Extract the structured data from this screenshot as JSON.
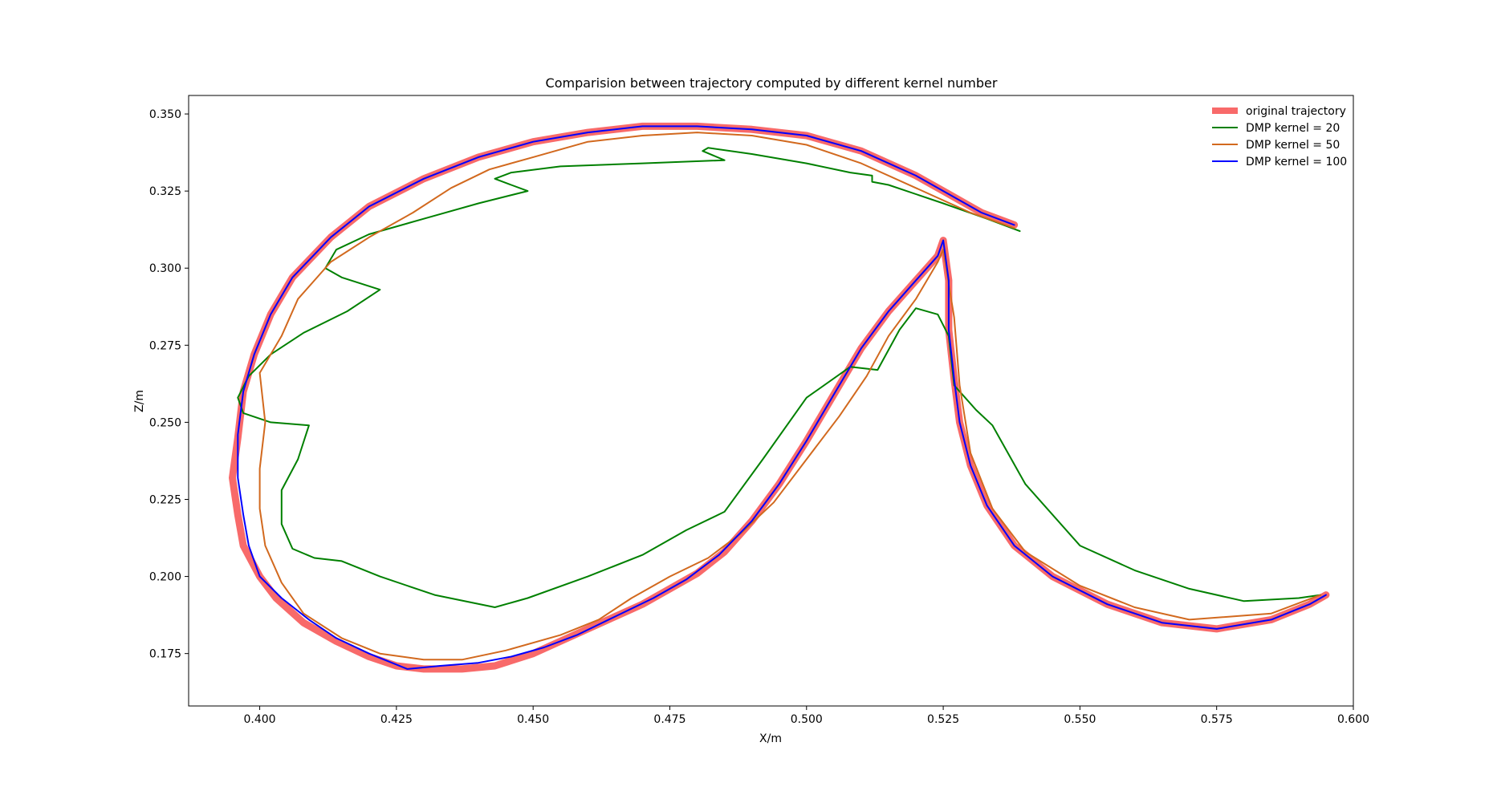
{
  "chart_data": {
    "type": "line",
    "title": "Comparision between trajectory computed by different kernel number",
    "xlabel": "X/m",
    "ylabel": "Z/m",
    "xlim": [
      0.387,
      0.6
    ],
    "ylim": [
      0.158,
      0.356
    ],
    "xticks": [
      0.4,
      0.425,
      0.45,
      0.475,
      0.5,
      0.525,
      0.55,
      0.575,
      0.6
    ],
    "xtick_labels": [
      "0.400",
      "0.425",
      "0.450",
      "0.475",
      "0.500",
      "0.525",
      "0.550",
      "0.575",
      "0.600"
    ],
    "yticks": [
      0.175,
      0.2,
      0.225,
      0.25,
      0.275,
      0.3,
      0.325,
      0.35
    ],
    "ytick_labels": [
      "0.175",
      "0.200",
      "0.225",
      "0.250",
      "0.275",
      "0.300",
      "0.325",
      "0.350"
    ],
    "grid": false,
    "legend_position": "top-right",
    "series": [
      {
        "name": "original trajectory",
        "color": "#f86a6a",
        "points": [
          [
            0.538,
            0.314
          ],
          [
            0.532,
            0.318
          ],
          [
            0.525,
            0.325
          ],
          [
            0.52,
            0.33
          ],
          [
            0.51,
            0.338
          ],
          [
            0.5,
            0.343
          ],
          [
            0.49,
            0.345
          ],
          [
            0.48,
            0.346
          ],
          [
            0.47,
            0.346
          ],
          [
            0.46,
            0.344
          ],
          [
            0.45,
            0.341
          ],
          [
            0.44,
            0.336
          ],
          [
            0.43,
            0.329
          ],
          [
            0.42,
            0.32
          ],
          [
            0.413,
            0.31
          ],
          [
            0.406,
            0.297
          ],
          [
            0.402,
            0.285
          ],
          [
            0.399,
            0.272
          ],
          [
            0.397,
            0.26
          ],
          [
            0.396,
            0.245
          ],
          [
            0.395,
            0.232
          ],
          [
            0.396,
            0.22
          ],
          [
            0.397,
            0.21
          ],
          [
            0.4,
            0.2
          ],
          [
            0.403,
            0.193
          ],
          [
            0.408,
            0.185
          ],
          [
            0.414,
            0.179
          ],
          [
            0.42,
            0.174
          ],
          [
            0.425,
            0.171
          ],
          [
            0.43,
            0.17
          ],
          [
            0.437,
            0.17
          ],
          [
            0.443,
            0.171
          ],
          [
            0.45,
            0.175
          ],
          [
            0.455,
            0.179
          ],
          [
            0.46,
            0.183
          ],
          [
            0.465,
            0.187
          ],
          [
            0.47,
            0.191
          ],
          [
            0.475,
            0.196
          ],
          [
            0.48,
            0.201
          ],
          [
            0.485,
            0.208
          ],
          [
            0.49,
            0.218
          ],
          [
            0.495,
            0.23
          ],
          [
            0.5,
            0.244
          ],
          [
            0.505,
            0.259
          ],
          [
            0.51,
            0.274
          ],
          [
            0.515,
            0.286
          ],
          [
            0.52,
            0.296
          ],
          [
            0.524,
            0.304
          ],
          [
            0.525,
            0.309
          ],
          [
            0.526,
            0.296
          ],
          [
            0.526,
            0.28
          ],
          [
            0.527,
            0.264
          ],
          [
            0.528,
            0.25
          ],
          [
            0.53,
            0.236
          ],
          [
            0.533,
            0.223
          ],
          [
            0.538,
            0.21
          ],
          [
            0.545,
            0.2
          ],
          [
            0.555,
            0.191
          ],
          [
            0.565,
            0.185
          ],
          [
            0.575,
            0.183
          ],
          [
            0.585,
            0.186
          ],
          [
            0.592,
            0.191
          ],
          [
            0.595,
            0.194
          ]
        ]
      },
      {
        "name": "DMP kernel = 20",
        "color": "#008000",
        "points": [
          [
            0.539,
            0.312
          ],
          [
            0.533,
            0.316
          ],
          [
            0.525,
            0.321
          ],
          [
            0.515,
            0.327
          ],
          [
            0.512,
            0.328
          ],
          [
            0.512,
            0.33
          ],
          [
            0.508,
            0.331
          ],
          [
            0.5,
            0.334
          ],
          [
            0.49,
            0.337
          ],
          [
            0.482,
            0.339
          ],
          [
            0.481,
            0.338
          ],
          [
            0.485,
            0.335
          ],
          [
            0.47,
            0.334
          ],
          [
            0.455,
            0.333
          ],
          [
            0.446,
            0.331
          ],
          [
            0.443,
            0.329
          ],
          [
            0.446,
            0.327
          ],
          [
            0.449,
            0.325
          ],
          [
            0.44,
            0.321
          ],
          [
            0.43,
            0.316
          ],
          [
            0.42,
            0.311
          ],
          [
            0.414,
            0.306
          ],
          [
            0.412,
            0.3
          ],
          [
            0.415,
            0.297
          ],
          [
            0.422,
            0.293
          ],
          [
            0.416,
            0.286
          ],
          [
            0.408,
            0.279
          ],
          [
            0.402,
            0.272
          ],
          [
            0.398,
            0.265
          ],
          [
            0.396,
            0.258
          ],
          [
            0.397,
            0.253
          ],
          [
            0.402,
            0.25
          ],
          [
            0.409,
            0.249
          ],
          [
            0.407,
            0.238
          ],
          [
            0.404,
            0.228
          ],
          [
            0.404,
            0.217
          ],
          [
            0.406,
            0.209
          ],
          [
            0.41,
            0.206
          ],
          [
            0.415,
            0.205
          ],
          [
            0.422,
            0.2
          ],
          [
            0.432,
            0.194
          ],
          [
            0.443,
            0.19
          ],
          [
            0.449,
            0.193
          ],
          [
            0.46,
            0.2
          ],
          [
            0.47,
            0.207
          ],
          [
            0.478,
            0.215
          ],
          [
            0.485,
            0.221
          ],
          [
            0.492,
            0.238
          ],
          [
            0.5,
            0.258
          ],
          [
            0.508,
            0.268
          ],
          [
            0.513,
            0.267
          ],
          [
            0.517,
            0.28
          ],
          [
            0.52,
            0.287
          ],
          [
            0.524,
            0.285
          ],
          [
            0.526,
            0.278
          ],
          [
            0.527,
            0.262
          ],
          [
            0.531,
            0.254
          ],
          [
            0.534,
            0.249
          ],
          [
            0.54,
            0.23
          ],
          [
            0.55,
            0.21
          ],
          [
            0.56,
            0.202
          ],
          [
            0.57,
            0.196
          ],
          [
            0.58,
            0.192
          ],
          [
            0.59,
            0.193
          ],
          [
            0.594,
            0.194
          ]
        ]
      },
      {
        "name": "DMP kernel = 50",
        "color": "#d2691e",
        "points": [
          [
            0.538,
            0.313
          ],
          [
            0.53,
            0.318
          ],
          [
            0.52,
            0.326
          ],
          [
            0.51,
            0.334
          ],
          [
            0.5,
            0.34
          ],
          [
            0.49,
            0.343
          ],
          [
            0.48,
            0.344
          ],
          [
            0.47,
            0.343
          ],
          [
            0.46,
            0.341
          ],
          [
            0.45,
            0.336
          ],
          [
            0.442,
            0.332
          ],
          [
            0.435,
            0.326
          ],
          [
            0.428,
            0.318
          ],
          [
            0.42,
            0.31
          ],
          [
            0.413,
            0.302
          ],
          [
            0.407,
            0.29
          ],
          [
            0.404,
            0.278
          ],
          [
            0.4,
            0.266
          ],
          [
            0.401,
            0.25
          ],
          [
            0.4,
            0.235
          ],
          [
            0.4,
            0.222
          ],
          [
            0.401,
            0.21
          ],
          [
            0.404,
            0.198
          ],
          [
            0.408,
            0.188
          ],
          [
            0.415,
            0.18
          ],
          [
            0.422,
            0.175
          ],
          [
            0.43,
            0.173
          ],
          [
            0.437,
            0.173
          ],
          [
            0.445,
            0.176
          ],
          [
            0.455,
            0.181
          ],
          [
            0.462,
            0.186
          ],
          [
            0.468,
            0.193
          ],
          [
            0.475,
            0.2
          ],
          [
            0.482,
            0.206
          ],
          [
            0.488,
            0.214
          ],
          [
            0.494,
            0.224
          ],
          [
            0.5,
            0.238
          ],
          [
            0.506,
            0.252
          ],
          [
            0.511,
            0.265
          ],
          [
            0.515,
            0.278
          ],
          [
            0.52,
            0.29
          ],
          [
            0.524,
            0.302
          ],
          [
            0.525,
            0.306
          ],
          [
            0.527,
            0.284
          ],
          [
            0.528,
            0.262
          ],
          [
            0.53,
            0.24
          ],
          [
            0.534,
            0.222
          ],
          [
            0.54,
            0.208
          ],
          [
            0.55,
            0.197
          ],
          [
            0.56,
            0.19
          ],
          [
            0.57,
            0.186
          ],
          [
            0.585,
            0.188
          ],
          [
            0.594,
            0.194
          ]
        ]
      },
      {
        "name": "DMP kernel = 100",
        "color": "#0000ff",
        "points": [
          [
            0.538,
            0.314
          ],
          [
            0.532,
            0.318
          ],
          [
            0.525,
            0.325
          ],
          [
            0.52,
            0.33
          ],
          [
            0.51,
            0.338
          ],
          [
            0.5,
            0.343
          ],
          [
            0.49,
            0.345
          ],
          [
            0.48,
            0.346
          ],
          [
            0.47,
            0.346
          ],
          [
            0.46,
            0.344
          ],
          [
            0.45,
            0.341
          ],
          [
            0.44,
            0.336
          ],
          [
            0.43,
            0.329
          ],
          [
            0.42,
            0.32
          ],
          [
            0.413,
            0.31
          ],
          [
            0.406,
            0.297
          ],
          [
            0.402,
            0.285
          ],
          [
            0.399,
            0.272
          ],
          [
            0.397,
            0.26
          ],
          [
            0.396,
            0.246
          ],
          [
            0.396,
            0.232
          ],
          [
            0.397,
            0.22
          ],
          [
            0.398,
            0.21
          ],
          [
            0.4,
            0.2
          ],
          [
            0.404,
            0.193
          ],
          [
            0.409,
            0.186
          ],
          [
            0.414,
            0.18
          ],
          [
            0.42,
            0.175
          ],
          [
            0.427,
            0.17
          ],
          [
            0.433,
            0.171
          ],
          [
            0.44,
            0.172
          ],
          [
            0.446,
            0.174
          ],
          [
            0.452,
            0.177
          ],
          [
            0.458,
            0.181
          ],
          [
            0.465,
            0.187
          ],
          [
            0.472,
            0.193
          ],
          [
            0.478,
            0.199
          ],
          [
            0.484,
            0.207
          ],
          [
            0.49,
            0.218
          ],
          [
            0.495,
            0.23
          ],
          [
            0.5,
            0.244
          ],
          [
            0.505,
            0.259
          ],
          [
            0.51,
            0.274
          ],
          [
            0.515,
            0.286
          ],
          [
            0.52,
            0.296
          ],
          [
            0.524,
            0.304
          ],
          [
            0.525,
            0.309
          ],
          [
            0.526,
            0.296
          ],
          [
            0.526,
            0.28
          ],
          [
            0.527,
            0.264
          ],
          [
            0.528,
            0.25
          ],
          [
            0.53,
            0.236
          ],
          [
            0.533,
            0.223
          ],
          [
            0.538,
            0.21
          ],
          [
            0.545,
            0.2
          ],
          [
            0.555,
            0.191
          ],
          [
            0.565,
            0.185
          ],
          [
            0.575,
            0.183
          ],
          [
            0.585,
            0.186
          ],
          [
            0.592,
            0.191
          ],
          [
            0.595,
            0.194
          ]
        ]
      }
    ]
  }
}
